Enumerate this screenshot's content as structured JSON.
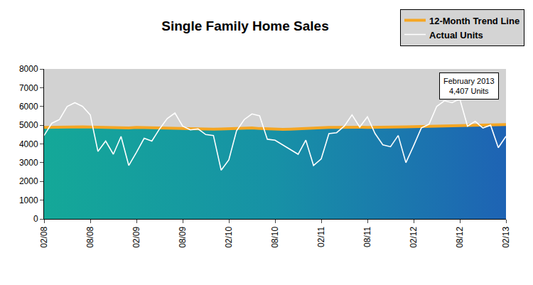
{
  "chart_data": {
    "type": "line",
    "title": "Single Family Home Sales",
    "categories": [
      "02/08",
      null,
      null,
      null,
      null,
      null,
      "08/08",
      null,
      null,
      null,
      null,
      null,
      "02/09",
      null,
      null,
      null,
      null,
      null,
      "08/09",
      null,
      null,
      null,
      null,
      null,
      "02/10",
      null,
      null,
      null,
      null,
      null,
      "08/10",
      null,
      null,
      null,
      null,
      null,
      "02/11",
      null,
      null,
      null,
      null,
      null,
      "08/11",
      null,
      null,
      null,
      null,
      null,
      "02/12",
      null,
      null,
      null,
      null,
      null,
      "08/12",
      null,
      null,
      null,
      null,
      null,
      "02/13"
    ],
    "series": [
      {
        "name": "12-Month Trend Line",
        "color": "#f5a623",
        "values": [
          4880,
          4890,
          4900,
          4910,
          4920,
          4910,
          4900,
          4890,
          4880,
          4870,
          4860,
          4850,
          4880,
          4870,
          4850,
          4840,
          4830,
          4820,
          4810,
          4800,
          4800,
          4790,
          4790,
          4800,
          4810,
          4820,
          4840,
          4850,
          4820,
          4800,
          4790,
          4780,
          4790,
          4810,
          4840,
          4850,
          4870,
          4880,
          4880,
          4890,
          4890,
          4890,
          4880,
          4880,
          4880,
          4890,
          4900,
          4910,
          4920,
          4930,
          4940,
          4950,
          4960,
          4970,
          4970,
          4970,
          4980,
          4990,
          5000,
          5010,
          5030
        ]
      },
      {
        "name": "Actual Units",
        "color": "#ffffff",
        "values": [
          4450,
          5100,
          5300,
          6000,
          6200,
          6000,
          5550,
          3600,
          4150,
          3450,
          4400,
          2850,
          3550,
          4300,
          4150,
          4800,
          5350,
          5650,
          4950,
          4750,
          4800,
          4500,
          4450,
          2600,
          3150,
          4700,
          5300,
          5600,
          5500,
          4250,
          4200,
          3950,
          3700,
          3450,
          4200,
          2850,
          3200,
          4550,
          4600,
          4950,
          5550,
          4900,
          5450,
          4550,
          3950,
          3850,
          4450,
          3000,
          3900,
          4850,
          5050,
          6000,
          6300,
          6200,
          6400,
          4950,
          5200,
          4850,
          5000,
          3800,
          4407
        ]
      }
    ],
    "ylim": [
      0,
      8000
    ],
    "yticks": [
      0,
      1000,
      2000,
      3000,
      4000,
      5000,
      6000,
      7000,
      8000
    ],
    "grid": false,
    "legend": "top right",
    "annotation": {
      "title": "February 2013",
      "text": "4,407 Units"
    }
  }
}
